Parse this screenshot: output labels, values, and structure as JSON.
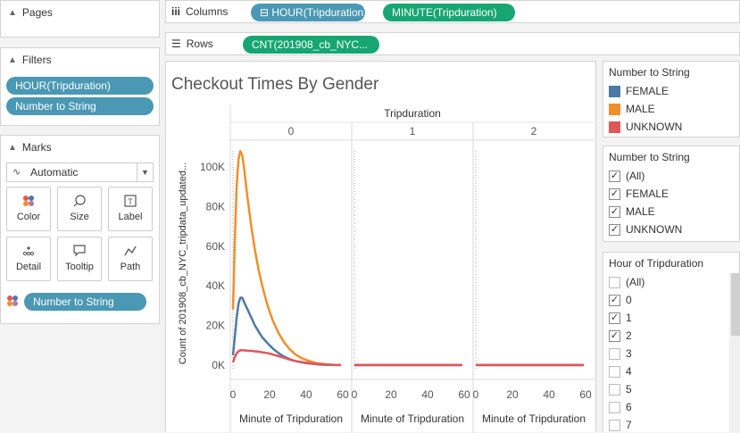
{
  "pages": {
    "title": "Pages"
  },
  "filters": {
    "title": "Filters",
    "items": [
      "HOUR(Tripduration)",
      "Number to String"
    ]
  },
  "marks": {
    "title": "Marks",
    "type": "Automatic",
    "buttons": {
      "color": "Color",
      "size": "Size",
      "label": "Label",
      "detail": "Detail",
      "tooltip": "Tooltip",
      "path": "Path"
    },
    "color_field": "Number to String"
  },
  "columns": {
    "label": "Columns",
    "pills": [
      "⊟ HOUR(Tripduration)",
      "MINUTE(Tripduration)"
    ]
  },
  "rows": {
    "label": "Rows",
    "pills": [
      "CNT(201908_cb_NYC..."
    ]
  },
  "legend": {
    "title": "Number to String",
    "items": [
      {
        "label": "FEMALE",
        "color": "#4e79a7"
      },
      {
        "label": "MALE",
        "color": "#f28e2b"
      },
      {
        "label": "UNKNOWN",
        "color": "#e15759"
      }
    ]
  },
  "gender_filter": {
    "title": "Number to String",
    "items": [
      {
        "label": "(All)",
        "checked": true
      },
      {
        "label": "FEMALE",
        "checked": true
      },
      {
        "label": "MALE",
        "checked": true
      },
      {
        "label": "UNKNOWN",
        "checked": true
      }
    ]
  },
  "hour_filter": {
    "title": "Hour of Tripduration",
    "items": [
      {
        "label": "(All)",
        "checked": false
      },
      {
        "label": "0",
        "checked": true
      },
      {
        "label": "1",
        "checked": true
      },
      {
        "label": "2",
        "checked": true
      },
      {
        "label": "3",
        "checked": false
      },
      {
        "label": "4",
        "checked": false
      },
      {
        "label": "5",
        "checked": false
      },
      {
        "label": "6",
        "checked": false
      },
      {
        "label": "7",
        "checked": false
      }
    ]
  },
  "chart_data": {
    "type": "line",
    "title": "Checkout Times By Gender",
    "column_header": "Tripduration",
    "panels": [
      "0",
      "1",
      "2"
    ],
    "xlabel": "Minute of Tripduration",
    "ylabel": "Count of 201908_cb_NYC_tripdata_updated...",
    "xticks": [
      "0",
      "20",
      "40",
      "60"
    ],
    "yticks": [
      "0K",
      "20K",
      "40K",
      "60K",
      "80K",
      "100K"
    ],
    "xlim": [
      0,
      60
    ],
    "ylim": [
      0,
      115000
    ],
    "x": [
      0,
      1,
      2,
      3,
      4,
      5,
      6,
      7,
      8,
      10,
      12,
      14,
      16,
      18,
      20,
      22,
      25,
      28,
      31,
      34,
      37,
      40,
      43,
      46,
      50,
      55,
      59
    ],
    "series": [
      {
        "name": "MALE",
        "color": "#f28e2b",
        "panels": [
          [
            28000,
            62000,
            90000,
            104000,
            108000,
            106000,
            100000,
            92000,
            84000,
            70000,
            58000,
            48000,
            40000,
            33000,
            27000,
            22000,
            16000,
            11500,
            8000,
            5500,
            3800,
            2600,
            1700,
            1000,
            500,
            200,
            100
          ],
          [
            100,
            100,
            100,
            100,
            100,
            100,
            100,
            100,
            100,
            100,
            100,
            100,
            100,
            100,
            100,
            100,
            100,
            100,
            100,
            100,
            100,
            100,
            100,
            100,
            100,
            100,
            100
          ],
          [
            100,
            100,
            100,
            100,
            100,
            100,
            100,
            100,
            100,
            100,
            100,
            100,
            100,
            100,
            100,
            100,
            100,
            100,
            100,
            100,
            100,
            100,
            100,
            100,
            100,
            100,
            100
          ]
        ]
      },
      {
        "name": "FEMALE",
        "color": "#4e79a7",
        "panels": [
          [
            5000,
            14000,
            24000,
            31000,
            34000,
            34000,
            32000,
            30000,
            28000,
            24000,
            20000,
            17000,
            14000,
            12000,
            10000,
            8200,
            6000,
            4300,
            3000,
            2100,
            1500,
            1000,
            700,
            400,
            200,
            100,
            50
          ],
          [
            30,
            30,
            30,
            30,
            30,
            30,
            30,
            30,
            30,
            30,
            30,
            30,
            30,
            30,
            30,
            30,
            30,
            30,
            30,
            30,
            30,
            30,
            30,
            30,
            30,
            30,
            30
          ],
          [
            30,
            30,
            30,
            30,
            30,
            30,
            30,
            30,
            30,
            30,
            30,
            30,
            30,
            30,
            30,
            30,
            30,
            30,
            30,
            30,
            30,
            30,
            30,
            30,
            30,
            30,
            30
          ]
        ]
      },
      {
        "name": "UNKNOWN",
        "color": "#e15759",
        "panels": [
          [
            1500,
            4000,
            6000,
            7000,
            7500,
            7500,
            7500,
            7400,
            7300,
            7200,
            7000,
            6800,
            6500,
            6200,
            5800,
            5300,
            4500,
            3700,
            2800,
            2100,
            1600,
            1200,
            900,
            600,
            350,
            150,
            50
          ],
          [
            10,
            10,
            10,
            10,
            10,
            10,
            10,
            10,
            10,
            10,
            10,
            10,
            10,
            10,
            10,
            10,
            10,
            10,
            10,
            10,
            10,
            10,
            10,
            10,
            10,
            10,
            10
          ],
          [
            10,
            10,
            10,
            10,
            10,
            10,
            10,
            10,
            10,
            10,
            10,
            10,
            10,
            10,
            10,
            10,
            10,
            10,
            10,
            10,
            10,
            10,
            10,
            10,
            10,
            10,
            10
          ]
        ]
      }
    ]
  }
}
